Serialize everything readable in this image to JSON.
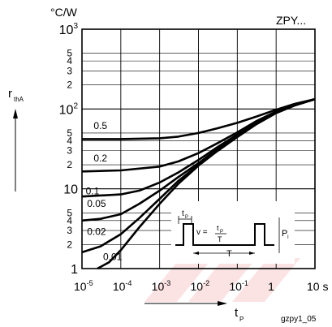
{
  "chart_data": {
    "type": "line",
    "title": "ZPY...",
    "ylabel_unit": "°C/W",
    "ylabel_symbol": "r",
    "ylabel_subscript": "thA",
    "xlabel_symbol": "t",
    "xlabel_subscript": "P",
    "x_scale": "log",
    "y_scale": "log",
    "xlim": [
      1e-05,
      10
    ],
    "ylim": [
      1,
      1000
    ],
    "grid": true,
    "x_ticks": [
      {
        "v": 1e-05,
        "base": "10",
        "exp": "-5"
      },
      {
        "v": 0.0001,
        "base": "10",
        "exp": "-4"
      },
      {
        "v": 0.001,
        "base": "10",
        "exp": "-3"
      },
      {
        "v": 0.01,
        "base": "10",
        "exp": "-2"
      },
      {
        "v": 0.1,
        "base": "10",
        "exp": "-1"
      },
      {
        "v": 1,
        "base": "1",
        "exp": ""
      },
      {
        "v": 10,
        "base": "10 s",
        "exp": ""
      }
    ],
    "y_major_ticks": [
      {
        "v": 1,
        "base": "1",
        "exp": ""
      },
      {
        "v": 10,
        "base": "10",
        "exp": ""
      },
      {
        "v": 100,
        "base": "10",
        "exp": "2"
      },
      {
        "v": 1000,
        "base": "10",
        "exp": "3"
      }
    ],
    "y_minor_ticks": [
      {
        "v": 2,
        "text": "2"
      },
      {
        "v": 3,
        "text": "3"
      },
      {
        "v": 4,
        "text": "4"
      },
      {
        "v": 5,
        "text": "5"
      },
      {
        "v": 20,
        "text": "2"
      },
      {
        "v": 30,
        "text": "3"
      },
      {
        "v": 40,
        "text": "4"
      },
      {
        "v": 50,
        "text": "5"
      },
      {
        "v": 200,
        "text": "2"
      },
      {
        "v": 300,
        "text": "3"
      },
      {
        "v": 400,
        "text": "4"
      },
      {
        "v": 500,
        "text": "5"
      }
    ],
    "series": [
      {
        "name": "0.5",
        "label_at": [
          2e-05,
          56
        ],
        "x": [
          1e-05,
          0.0001,
          0.001,
          0.003,
          0.01,
          0.03,
          0.1,
          0.3,
          1,
          3,
          10
        ],
        "y": [
          42,
          42,
          43,
          45,
          50,
          57,
          67,
          80,
          98,
          116,
          133
        ]
      },
      {
        "name": "0.2",
        "label_at": [
          2e-05,
          22
        ],
        "x": [
          1e-05,
          0.0001,
          0.001,
          0.003,
          0.01,
          0.03,
          0.1,
          0.3,
          1,
          3,
          10
        ],
        "y": [
          16.5,
          17,
          19,
          22,
          28,
          37,
          51,
          70,
          93,
          113,
          133
        ]
      },
      {
        "name": "0.1",
        "label_at": [
          1.25e-05,
          8.5
        ],
        "x": [
          1e-05,
          0.0001,
          0.0003,
          0.001,
          0.003,
          0.01,
          0.03,
          0.1,
          0.3,
          1,
          3,
          10
        ],
        "y": [
          8,
          8.5,
          9.5,
          12,
          16,
          23,
          33,
          48,
          67,
          91,
          112,
          133
        ]
      },
      {
        "name": "0.05",
        "label_at": [
          1.35e-05,
          5.9
        ],
        "x": [
          1e-05,
          3e-05,
          0.0001,
          0.0003,
          0.001,
          0.003,
          0.01,
          0.03,
          0.1,
          0.3,
          1,
          3,
          10
        ],
        "y": [
          4,
          4.2,
          4.8,
          6.5,
          9.5,
          14,
          21,
          31,
          46,
          65,
          90,
          111,
          133
        ]
      },
      {
        "name": "0.02",
        "label_at": [
          1.35e-05,
          2.65
        ],
        "x": [
          1e-05,
          3e-05,
          0.0001,
          0.0003,
          0.001,
          0.003,
          0.01,
          0.03,
          0.1,
          0.3,
          1,
          3,
          10
        ],
        "y": [
          1.6,
          1.9,
          2.7,
          4.3,
          7.5,
          12.5,
          20,
          30,
          45,
          64,
          89,
          111,
          133
        ]
      },
      {
        "name": "0.01",
        "label_at": [
          3.5e-05,
          1.28
        ],
        "x": [
          2.5e-05,
          5e-05,
          0.0001,
          0.0003,
          0.001,
          0.003,
          0.01,
          0.03,
          0.1,
          0.3,
          1,
          3,
          10
        ],
        "y": [
          0.95,
          1.2,
          1.7,
          3.3,
          6.5,
          11.5,
          19.5,
          29.5,
          44.5,
          64,
          89,
          111,
          133
        ]
      }
    ],
    "inset": {
      "tp_base": "t",
      "tp_sub": "P",
      "v_symbol": "v =",
      "frac_num_base": "t",
      "frac_num_sub": "P",
      "frac_den": "T",
      "period_label": "T",
      "power_label": "P",
      "power_sub": "I"
    },
    "footnote": "gzpy1_05"
  }
}
